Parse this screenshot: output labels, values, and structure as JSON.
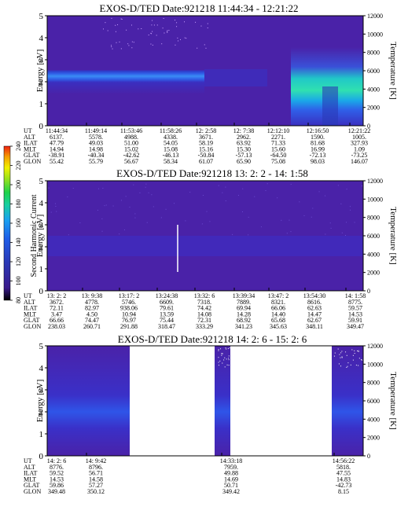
{
  "colorbar": {
    "label": "Second Harmonic Current",
    "ticks": [
      "80",
      "100",
      "120",
      "140",
      "160",
      "180",
      "200",
      "220",
      "240"
    ],
    "colors": [
      "#000000",
      "#3a1a8c",
      "#2a3ab8",
      "#1f5ee8",
      "#1aa0f0",
      "#18d0a0",
      "#1ed24a",
      "#8ee020",
      "#f0f000",
      "#f5a000",
      "#ee2010"
    ]
  },
  "chart_data": [
    {
      "type": "heatmap",
      "title": "EXOS-D/TED   Date:921218   11:44:34 - 12:21:22",
      "ylabel": "Energy [eV]",
      "ylabel_right": "Temperature [K]",
      "yticks": [
        "0",
        "1",
        "2",
        "3",
        "4",
        "5"
      ],
      "yticks_right": [
        "0",
        "2000",
        "4000",
        "6000",
        "8000",
        "10000",
        "12000"
      ],
      "ylim": [
        0,
        5
      ],
      "ylim_right": [
        0,
        12000
      ],
      "row_labels": [
        "UT",
        "ALT",
        "ILAT",
        "MLT",
        "GLAT",
        "GLON"
      ],
      "columns": [
        [
          "11:44:34",
          "6137.",
          "47.79",
          "14.94",
          "-38.91",
          "55.42"
        ],
        [
          "11:49:14",
          "5578.",
          "49.03",
          "14.98",
          "-40.34",
          "55.79"
        ],
        [
          "11:53:46",
          "4988.",
          "51.00",
          "15.02",
          "-42.62",
          "56.67"
        ],
        [
          "11:58:26",
          "4338.",
          "54.05",
          "15.08",
          "-46.13",
          "58.34"
        ],
        [
          "12: 2:58",
          "3671.",
          "58.19",
          "15.16",
          "-50.84",
          "61.07"
        ],
        [
          "12: 7:38",
          "2962.",
          "63.92",
          "15.30",
          "-57.13",
          "65.90"
        ],
        [
          "12:12:10",
          "2271.",
          "71.33",
          "15.60",
          "-64.50",
          "75.08"
        ],
        [
          "12:16:50",
          "1590.",
          "81.68",
          "16.99",
          "-72.13",
          "98.03"
        ],
        [
          "12:21:22",
          "1005.",
          "327.93",
          "1.09",
          "-73.25",
          "146.07"
        ]
      ]
    },
    {
      "type": "heatmap",
      "title": "EXOS-D/TED   Date:921218   13: 2: 2 - 14: 1:58",
      "ylabel": "Energy [eV]",
      "ylabel_right": "Temperature [K]",
      "yticks": [
        "0",
        "1",
        "2",
        "3",
        "4",
        "5"
      ],
      "yticks_right": [
        "0",
        "2000",
        "4000",
        "6000",
        "8000",
        "10000",
        "12000"
      ],
      "ylim": [
        0,
        5
      ],
      "ylim_right": [
        0,
        12000
      ],
      "row_labels": [
        "UT",
        "ALT",
        "ILAT",
        "MLT",
        "GLAT",
        "GLON"
      ],
      "columns": [
        [
          "13: 2: 2",
          "3672.",
          "72.11",
          "3.47",
          "66.66",
          "238.03"
        ],
        [
          "13: 9:38",
          "4778.",
          "82.97",
          "4.50",
          "74.47",
          "260.71"
        ],
        [
          "13:17: 2",
          "5746.",
          "938.06",
          "10.94",
          "76.97",
          "291.88"
        ],
        [
          "13:24:38",
          "6609.",
          "79.61",
          "13.59",
          "75.44",
          "318.47"
        ],
        [
          "13:32: 6",
          "7318.",
          "74.42",
          "14.08",
          "72.31",
          "333.29"
        ],
        [
          "13:39:34",
          "7889.",
          "69.94",
          "14.28",
          "68.92",
          "341.23"
        ],
        [
          "13:47: 2",
          "8321.",
          "66.06",
          "14.40",
          "65.68",
          "345.63"
        ],
        [
          "13:54:30",
          "8616.",
          "62.63",
          "14.47",
          "62.67",
          "348.11"
        ],
        [
          "14: 1:58",
          "8775.",
          "59.57",
          "14.53",
          "59.91",
          "349.47"
        ]
      ]
    },
    {
      "type": "heatmap",
      "title": "EXOS-D/TED   Date:921218   14: 2: 6 - 15: 2: 6",
      "ylabel": "Energy [eV]",
      "ylabel_right": "Temperature [K]",
      "yticks": [
        "0",
        "1",
        "2",
        "3",
        "4",
        "5"
      ],
      "yticks_right": [
        "0",
        "2000",
        "4000",
        "6000",
        "8000",
        "10000",
        "12000"
      ],
      "ylim": [
        0,
        5
      ],
      "ylim_right": [
        0,
        12000
      ],
      "row_labels": [
        "UT",
        "ALT",
        "ILAT",
        "MLT",
        "GLAT",
        "GLON"
      ],
      "columns": [
        [
          "14: 2: 6",
          "8776.",
          "59.52",
          "14.53",
          "59.86",
          "349.48"
        ],
        [
          "14: 9:42",
          "8796.",
          "56.71",
          "14.58",
          "57.27",
          "350.12"
        ],
        [
          "14:33:18",
          "7959.",
          "49.88",
          "14.69",
          "50.71",
          "349.42"
        ],
        [
          "14:56:22",
          "5818.",
          "47.55",
          "14.83",
          "-42.73",
          "8.15"
        ]
      ]
    }
  ]
}
